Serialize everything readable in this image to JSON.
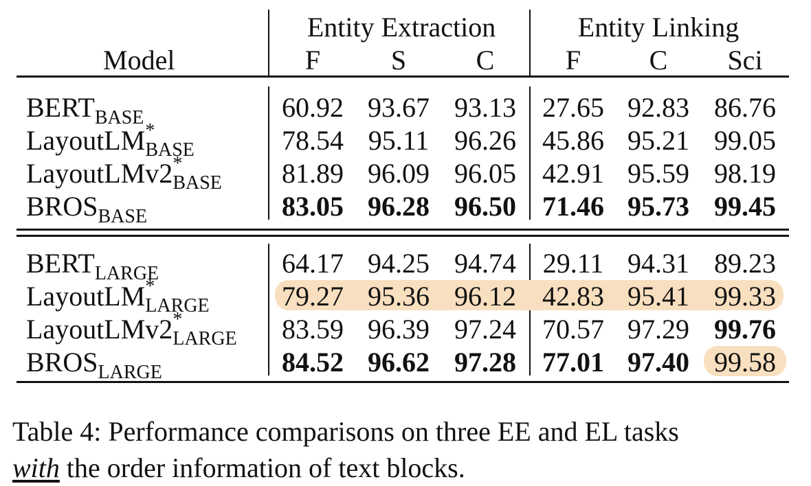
{
  "table": {
    "model_header": "Model",
    "groups": [
      {
        "label": "Entity Extraction",
        "columns": [
          "F",
          "S",
          "C"
        ]
      },
      {
        "label": "Entity Linking",
        "columns": [
          "F",
          "C",
          "Sci"
        ]
      }
    ],
    "sections": [
      {
        "rows": [
          {
            "model": "BERT",
            "sub": "BASE",
            "star": "",
            "values": [
              "60.92",
              "93.67",
              "93.13",
              "27.65",
              "92.83",
              "86.76"
            ],
            "bold": [
              false,
              false,
              false,
              false,
              false,
              false
            ],
            "highlight_row": false,
            "highlight_cells": []
          },
          {
            "model": "LayoutLM",
            "sub": "BASE",
            "star": "*",
            "values": [
              "78.54",
              "95.11",
              "96.26",
              "45.86",
              "95.21",
              "99.05"
            ],
            "bold": [
              false,
              false,
              false,
              false,
              false,
              false
            ],
            "highlight_row": false,
            "highlight_cells": []
          },
          {
            "model": "LayoutLMv2",
            "sub": "BASE",
            "star": "*",
            "values": [
              "81.89",
              "96.09",
              "96.05",
              "42.91",
              "95.59",
              "98.19"
            ],
            "bold": [
              false,
              false,
              false,
              false,
              false,
              false
            ],
            "highlight_row": false,
            "highlight_cells": []
          },
          {
            "model": "BROS",
            "sub": "BASE",
            "star": "",
            "values": [
              "83.05",
              "96.28",
              "96.50",
              "71.46",
              "95.73",
              "99.45"
            ],
            "bold": [
              true,
              true,
              true,
              true,
              true,
              true
            ],
            "highlight_row": false,
            "highlight_cells": []
          }
        ]
      },
      {
        "rows": [
          {
            "model": "BERT",
            "sub": "LARGE",
            "star": "",
            "values": [
              "64.17",
              "94.25",
              "94.74",
              "29.11",
              "94.31",
              "89.23"
            ],
            "bold": [
              false,
              false,
              false,
              false,
              false,
              false
            ],
            "highlight_row": false,
            "highlight_cells": []
          },
          {
            "model": "LayoutLM",
            "sub": "LARGE",
            "star": "*",
            "values": [
              "79.27",
              "95.36",
              "96.12",
              "42.83",
              "95.41",
              "99.33"
            ],
            "bold": [
              false,
              false,
              false,
              false,
              false,
              false
            ],
            "highlight_row": true,
            "highlight_cells": []
          },
          {
            "model": "LayoutLMv2",
            "sub": "LARGE",
            "star": "*",
            "values": [
              "83.59",
              "96.39",
              "97.24",
              "70.57",
              "97.29",
              "99.76"
            ],
            "bold": [
              false,
              false,
              false,
              false,
              false,
              true
            ],
            "highlight_row": false,
            "highlight_cells": []
          },
          {
            "model": "BROS",
            "sub": "LARGE",
            "star": "",
            "values": [
              "84.52",
              "96.62",
              "97.28",
              "77.01",
              "97.40",
              "99.58"
            ],
            "bold": [
              true,
              true,
              true,
              true,
              true,
              false
            ],
            "highlight_row": false,
            "highlight_cells": [
              5
            ]
          }
        ]
      }
    ],
    "highlight_color": "#f8dfbf"
  },
  "caption": {
    "line1": "Table 4: Performance comparisons on three EE and EL tasks",
    "emph": "with",
    "line2_rest": " the order information of text blocks."
  }
}
